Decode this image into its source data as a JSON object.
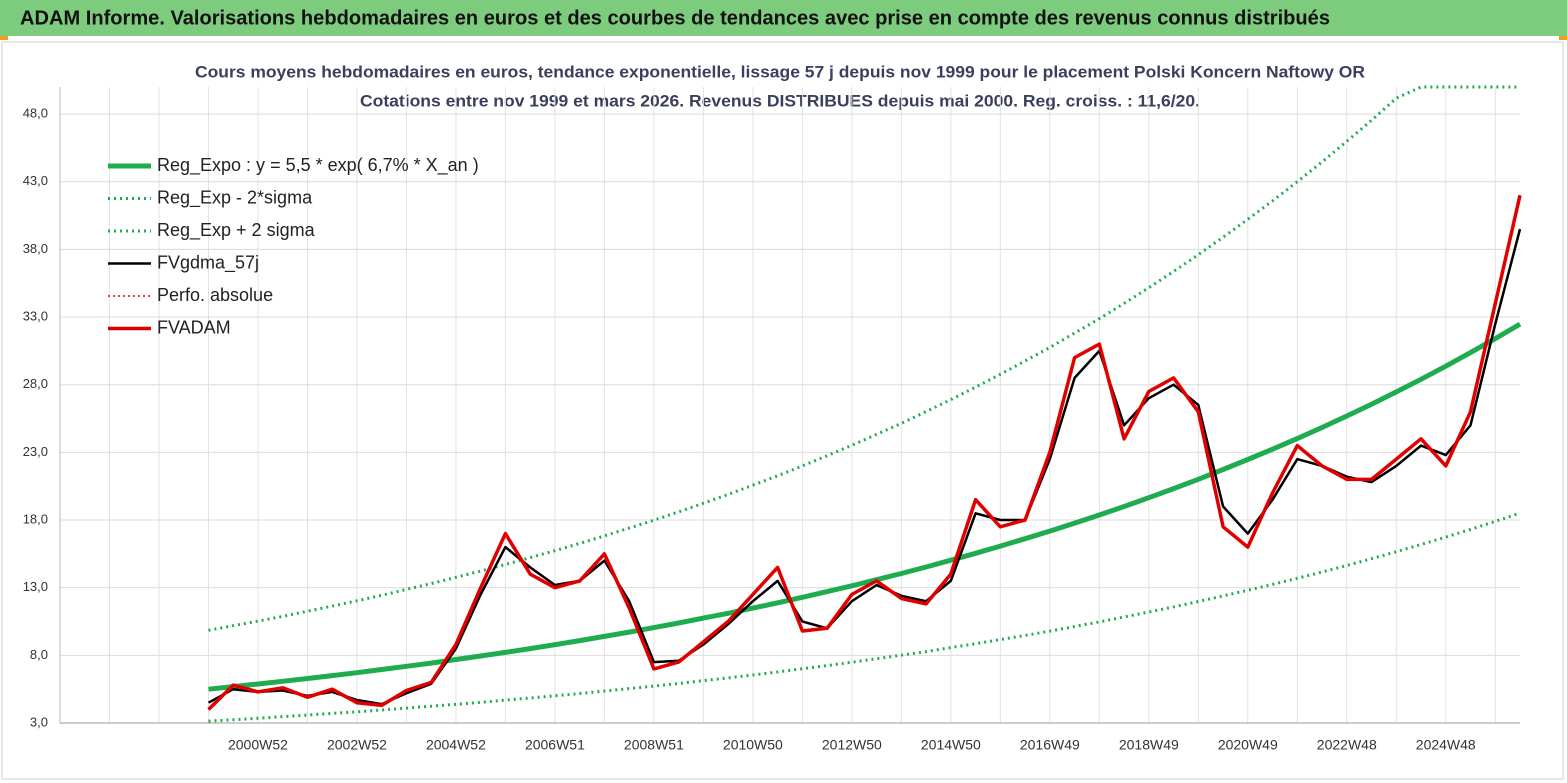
{
  "header": {
    "title": "ADAM Informe. Valorisations hebdomadaires en euros et des courbes de tendances avec prise en compte des revenus connus distribués"
  },
  "chart_data": {
    "type": "line",
    "title": "Cours moyens hebdomadaires en euros, tendance exponentielle, lissage 57 j depuis nov 1999  pour le placement Polski Koncern Naftowy OR",
    "subtitle": "Cotations entre nov 1999 et mars 2026. Revenus DISTRIBUES depuis mai 2000. Reg. croiss. : 11,6/20.",
    "categories": [
      null,
      null,
      null,
      null,
      null,
      null,
      null,
      null,
      "2000W52",
      null,
      null,
      null,
      "2002W52",
      null,
      null,
      null,
      "2004W52",
      null,
      null,
      null,
      "2006W51",
      null,
      null,
      null,
      "2008W51",
      null,
      null,
      null,
      "2010W50",
      null,
      null,
      null,
      "2012W50",
      null,
      null,
      null,
      "2014W50",
      null,
      null,
      null,
      "2016W49",
      null,
      null,
      null,
      "2018W49",
      null,
      null,
      null,
      "2020W49",
      null,
      null,
      null,
      "2022W48",
      null,
      null,
      null,
      "2024W48",
      null,
      null,
      null
    ],
    "ylim": [
      3,
      50
    ],
    "yticks": [
      {
        "value": 3,
        "label": "3,0"
      },
      {
        "value": 8,
        "label": "8,0"
      },
      {
        "value": 13,
        "label": "13,0"
      },
      {
        "value": 18,
        "label": "18,0"
      },
      {
        "value": 23,
        "label": "23,0"
      },
      {
        "value": 28,
        "label": "28,0"
      },
      {
        "value": 33,
        "label": "33,0"
      },
      {
        "value": 38,
        "label": "38,0"
      },
      {
        "value": 43,
        "label": "43,0"
      },
      {
        "value": 48,
        "label": "48,0"
      }
    ],
    "grid": true,
    "series": [
      {
        "name": "Reg_Expo : y = 5,5 * exp( 6,7% *  X_an )",
        "color": "#1fac4e",
        "width": 5,
        "dash": "none",
        "values": [
          null,
          null,
          null,
          null,
          null,
          null,
          5.5,
          5.69,
          5.88,
          6.08,
          6.29,
          6.5,
          6.72,
          6.95,
          7.19,
          7.43,
          7.69,
          7.95,
          8.22,
          8.5,
          8.79,
          9.09,
          9.4,
          9.72,
          10.05,
          10.39,
          10.75,
          11.11,
          11.49,
          11.88,
          12.29,
          12.71,
          13.14,
          13.59,
          14.05,
          14.53,
          15.03,
          15.54,
          16.07,
          16.62,
          17.18,
          17.77,
          18.37,
          19.0,
          19.65,
          20.32,
          21.01,
          21.73,
          22.47,
          23.23,
          24.02,
          24.84,
          25.69,
          26.56,
          27.47,
          28.4,
          29.37,
          30.37,
          31.41,
          32.48
        ]
      },
      {
        "name": "Reg_Exp - 2*sigma",
        "color": "#1fac4e",
        "width": 3,
        "dash": "2 4",
        "values": [
          null,
          null,
          null,
          null,
          null,
          null,
          3.14,
          3.24,
          3.35,
          3.47,
          3.59,
          3.71,
          3.83,
          3.96,
          4.1,
          4.24,
          4.38,
          4.53,
          4.69,
          4.85,
          5.01,
          5.18,
          5.36,
          5.54,
          5.73,
          5.92,
          6.13,
          6.33,
          6.55,
          6.77,
          7.01,
          7.24,
          7.49,
          7.75,
          8.01,
          8.28,
          8.57,
          8.86,
          9.16,
          9.47,
          9.79,
          10.13,
          10.47,
          10.83,
          11.2,
          11.58,
          11.98,
          12.39,
          12.81,
          13.24,
          13.69,
          14.16,
          14.64,
          15.14,
          15.66,
          16.19,
          16.74,
          17.31,
          17.9,
          18.51
        ]
      },
      {
        "name": "Reg_Exp + 2 sigma",
        "color": "#1fac4e",
        "width": 3,
        "dash": "2 4",
        "values": [
          null,
          null,
          null,
          null,
          null,
          null,
          9.85,
          10.19,
          10.53,
          10.88,
          11.26,
          11.64,
          12.03,
          12.44,
          12.87,
          13.3,
          13.77,
          14.23,
          14.71,
          15.22,
          15.73,
          16.27,
          16.83,
          17.4,
          17.99,
          18.6,
          19.24,
          19.89,
          20.57,
          21.27,
          22.0,
          22.75,
          23.52,
          24.33,
          25.15,
          26.01,
          26.9,
          27.82,
          28.77,
          29.75,
          30.75,
          31.81,
          32.88,
          34.01,
          35.17,
          36.37,
          37.61,
          38.9,
          40.22,
          41.58,
          43.0,
          44.46,
          45.99,
          47.54,
          49.17,
          50,
          50,
          50,
          50,
          50
        ]
      },
      {
        "name": "FVgdma_57j",
        "color": "#000000",
        "width": 2.5,
        "dash": "none",
        "values": [
          null,
          null,
          null,
          null,
          null,
          null,
          4.5,
          5.5,
          5.3,
          5.4,
          5.0,
          5.3,
          4.7,
          4.4,
          5.2,
          5.9,
          8.5,
          12.5,
          16.0,
          14.5,
          13.2,
          13.5,
          15.0,
          12.0,
          7.5,
          7.6,
          8.8,
          10.3,
          12.0,
          13.5,
          10.5,
          10.0,
          12.0,
          13.2,
          12.4,
          12.0,
          13.5,
          18.5,
          18.0,
          18.0,
          22.5,
          28.5,
          30.5,
          25.0,
          27.0,
          28.0,
          26.5,
          19.0,
          17.0,
          19.5,
          22.5,
          22.0,
          21.2,
          20.8,
          22.0,
          23.5,
          22.8,
          25.0,
          32.5,
          39.5
        ]
      },
      {
        "name": "Perfo. absolue",
        "color": "#e00000",
        "width": 1.5,
        "dash": "2 3",
        "values": [
          null,
          null,
          null,
          null,
          null,
          null,
          4.0,
          5.8,
          5.3,
          5.6,
          4.9,
          5.5,
          4.5,
          4.3,
          5.4,
          6.0,
          8.8,
          13.0,
          17.0,
          14.0,
          13.0,
          13.5,
          15.5,
          11.5,
          7.0,
          7.5,
          9.0,
          10.5,
          12.5,
          14.5,
          9.8,
          10.0,
          12.5,
          13.5,
          12.2,
          11.8,
          14.0,
          19.5,
          17.5,
          18.0,
          23.0,
          30.0,
          31.0,
          24.0,
          27.5,
          28.5,
          26.0,
          17.5,
          16.0,
          20.0,
          23.5,
          22.0,
          21.0,
          21.0,
          22.5,
          24.0,
          22.0,
          26.0,
          34.0,
          42.0
        ]
      },
      {
        "name": "FVADAM",
        "color": "#e00000",
        "width": 3.5,
        "dash": "none",
        "values": [
          null,
          null,
          null,
          null,
          null,
          null,
          4.0,
          5.8,
          5.3,
          5.6,
          4.9,
          5.5,
          4.5,
          4.3,
          5.4,
          6.0,
          8.8,
          13.0,
          17.0,
          14.0,
          13.0,
          13.5,
          15.5,
          11.5,
          7.0,
          7.5,
          9.0,
          10.5,
          12.5,
          14.5,
          9.8,
          10.0,
          12.5,
          13.5,
          12.2,
          11.8,
          14.0,
          19.5,
          17.5,
          18.0,
          23.0,
          30.0,
          31.0,
          24.0,
          27.5,
          28.5,
          26.0,
          17.5,
          16.0,
          20.0,
          23.5,
          22.0,
          21.0,
          21.0,
          22.5,
          24.0,
          22.0,
          26.0,
          34.0,
          42.0
        ]
      }
    ]
  }
}
